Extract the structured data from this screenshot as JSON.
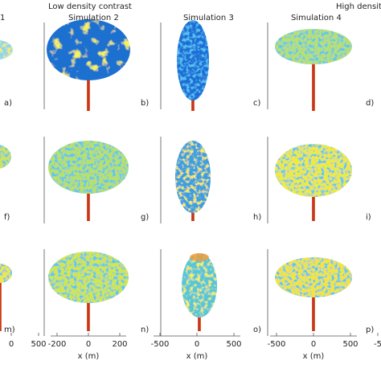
{
  "header": {
    "left": "Low density contrast",
    "right": "High density"
  },
  "columns": [
    {
      "title": "1",
      "panels": [
        "a)",
        "f)",
        "m)"
      ],
      "ticks": [
        "0",
        "500"
      ]
    },
    {
      "title": "Simulation 2",
      "panels": [
        "b)",
        "g)",
        "n)"
      ],
      "ticks": [
        "-200",
        "0",
        "200"
      ],
      "xlabel": "x (m)"
    },
    {
      "title": "Simulation 3",
      "panels": [
        "c)",
        "h)",
        "o)"
      ],
      "ticks": [
        "-500",
        "0",
        "500"
      ],
      "xlabel": "x (m)"
    },
    {
      "title": "Simulation 4",
      "panels": [
        "d)",
        "i)",
        "p)"
      ],
      "ticks": [
        "-500",
        "0",
        "500"
      ],
      "xlabel": "x (m)"
    },
    {
      "ticks": [
        "-5"
      ]
    }
  ]
}
